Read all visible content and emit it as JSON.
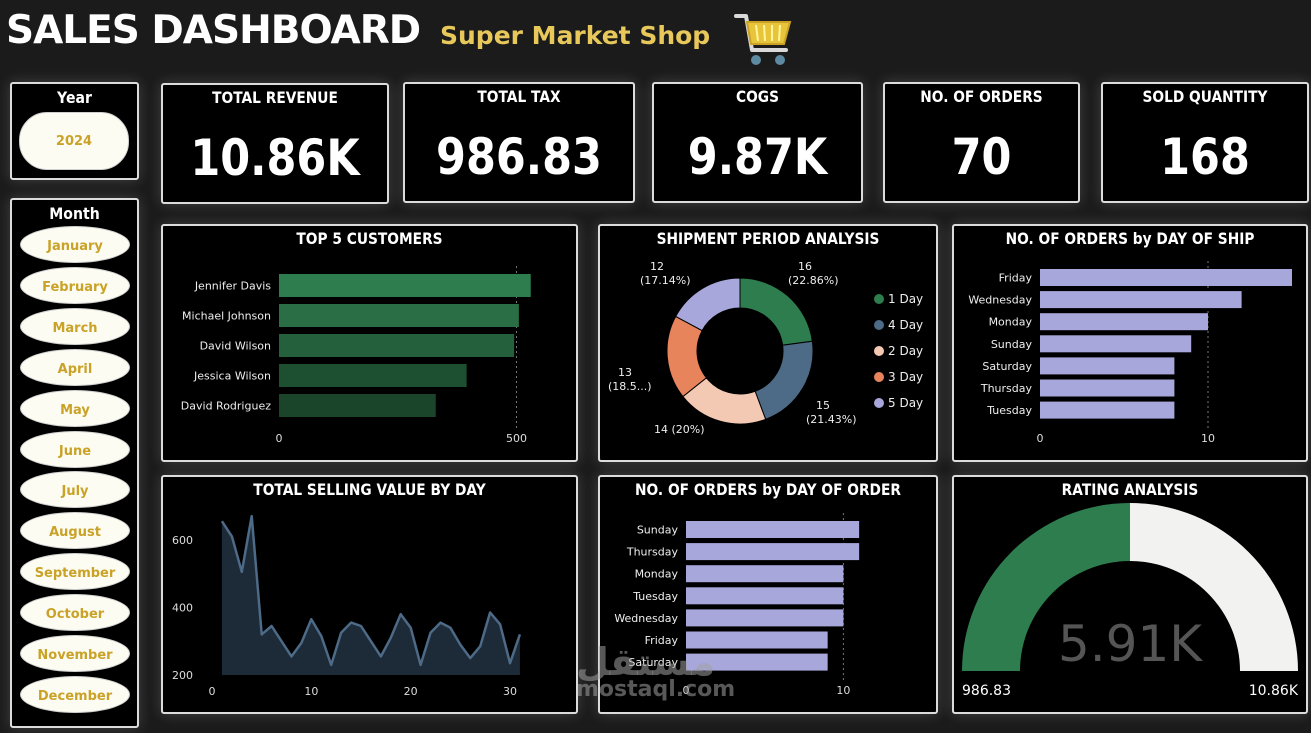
{
  "header": {
    "title": "SALES DASHBOARD",
    "subtitle": "Super Market Shop",
    "cart_icon": "shopping-cart-icon",
    "accent": "#e8c85a"
  },
  "slicers": {
    "year": {
      "label": "Year",
      "value": "2024"
    },
    "month": {
      "label": "Month",
      "items": [
        "January",
        "February",
        "March",
        "April",
        "May",
        "June",
        "July",
        "August",
        "September",
        "October",
        "November",
        "December"
      ]
    }
  },
  "kpis": [
    {
      "label": "TOTAL REVENUE",
      "value": "10.86K"
    },
    {
      "label": "TOTAL TAX",
      "value": "986.83"
    },
    {
      "label": "COGS",
      "value": "9.87K"
    },
    {
      "label": "NO. OF ORDERS",
      "value": "70"
    },
    {
      "label": "SOLD QUANTITY",
      "value": "168"
    }
  ],
  "chart_data": [
    {
      "id": "top-customers",
      "type": "bar",
      "orientation": "horizontal",
      "title": "TOP 5 CUSTOMERS",
      "categories": [
        "Jennifer Davis",
        "Michael Johnson",
        "David Wilson",
        "Jessica Wilson",
        "David Rodriguez"
      ],
      "values": [
        530,
        505,
        495,
        395,
        330
      ],
      "xlim": [
        0,
        560
      ],
      "xticks": [
        0,
        500
      ],
      "colors": [
        "#2e7d4f",
        "#2a6e45",
        "#24603c",
        "#1d4f31",
        "#1a452b"
      ]
    },
    {
      "id": "shipment-period",
      "type": "pie",
      "donut": true,
      "title": "SHIPMENT PERIOD ANALYSIS",
      "categories": [
        "1 Day",
        "4 Day",
        "2 Day",
        "3 Day",
        "5 Day"
      ],
      "values": [
        16,
        15,
        14,
        13,
        12
      ],
      "labels": [
        [
          "16",
          "(22.86%)"
        ],
        [
          "15",
          "(21.43%)"
        ],
        [
          "14 (20%)"
        ],
        [
          "13",
          "(18.5...)"
        ],
        [
          "12",
          "(17.14%)"
        ]
      ],
      "colors": [
        "#2e7d4f",
        "#4d6a86",
        "#f4c9b4",
        "#e8845c",
        "#a7a7dc"
      ],
      "legend": "right"
    },
    {
      "id": "orders-by-ship-day",
      "type": "bar",
      "orientation": "horizontal",
      "title": "NO. OF ORDERS by DAY OF SHIP",
      "categories": [
        "Friday",
        "Wednesday",
        "Monday",
        "Sunday",
        "Saturday",
        "Thursday",
        "Tuesday"
      ],
      "values": [
        15,
        12,
        10,
        9,
        8,
        8,
        8
      ],
      "xlim": [
        0,
        15
      ],
      "xticks": [
        0,
        10
      ],
      "color": "#a7a7dc"
    },
    {
      "id": "selling-value-by-day",
      "type": "area",
      "title": "TOTAL SELLING VALUE BY DAY",
      "x": [
        1,
        2,
        3,
        4,
        5,
        6,
        7,
        8,
        9,
        10,
        11,
        12,
        13,
        14,
        15,
        16,
        17,
        18,
        19,
        20,
        21,
        22,
        23,
        24,
        25,
        26,
        27,
        28,
        29,
        30,
        31
      ],
      "values": [
        655,
        610,
        505,
        670,
        320,
        345,
        300,
        255,
        295,
        365,
        315,
        230,
        325,
        355,
        345,
        300,
        255,
        310,
        380,
        340,
        230,
        325,
        355,
        340,
        290,
        250,
        285,
        385,
        350,
        235,
        320
      ],
      "ylim": [
        200,
        700
      ],
      "yticks": [
        200,
        400,
        600
      ],
      "xticks": [
        0,
        10,
        20,
        30
      ],
      "color": "#4d6a86"
    },
    {
      "id": "orders-by-order-day",
      "type": "bar",
      "orientation": "horizontal",
      "title": "NO. OF ORDERS by DAY OF ORDER",
      "categories": [
        "Sunday",
        "Thursday",
        "Monday",
        "Tuesday",
        "Wednesday",
        "Friday",
        "Saturday"
      ],
      "values": [
        11,
        11,
        10,
        10,
        10,
        9,
        9
      ],
      "xlim": [
        0,
        11.5
      ],
      "xticks": [
        0,
        10
      ],
      "color": "#a7a7dc"
    },
    {
      "id": "rating-analysis",
      "type": "gauge",
      "title": "RATING ANALYSIS",
      "value": 5.91,
      "value_label": "5.91K",
      "min_label": "986.83",
      "max_label": "10.86K",
      "fraction": 0.5,
      "colors": [
        "#2e7d4f",
        "#f2f2f0"
      ]
    }
  ],
  "watermark": {
    "brand": "مستقل",
    "url": "mostaql.com"
  }
}
